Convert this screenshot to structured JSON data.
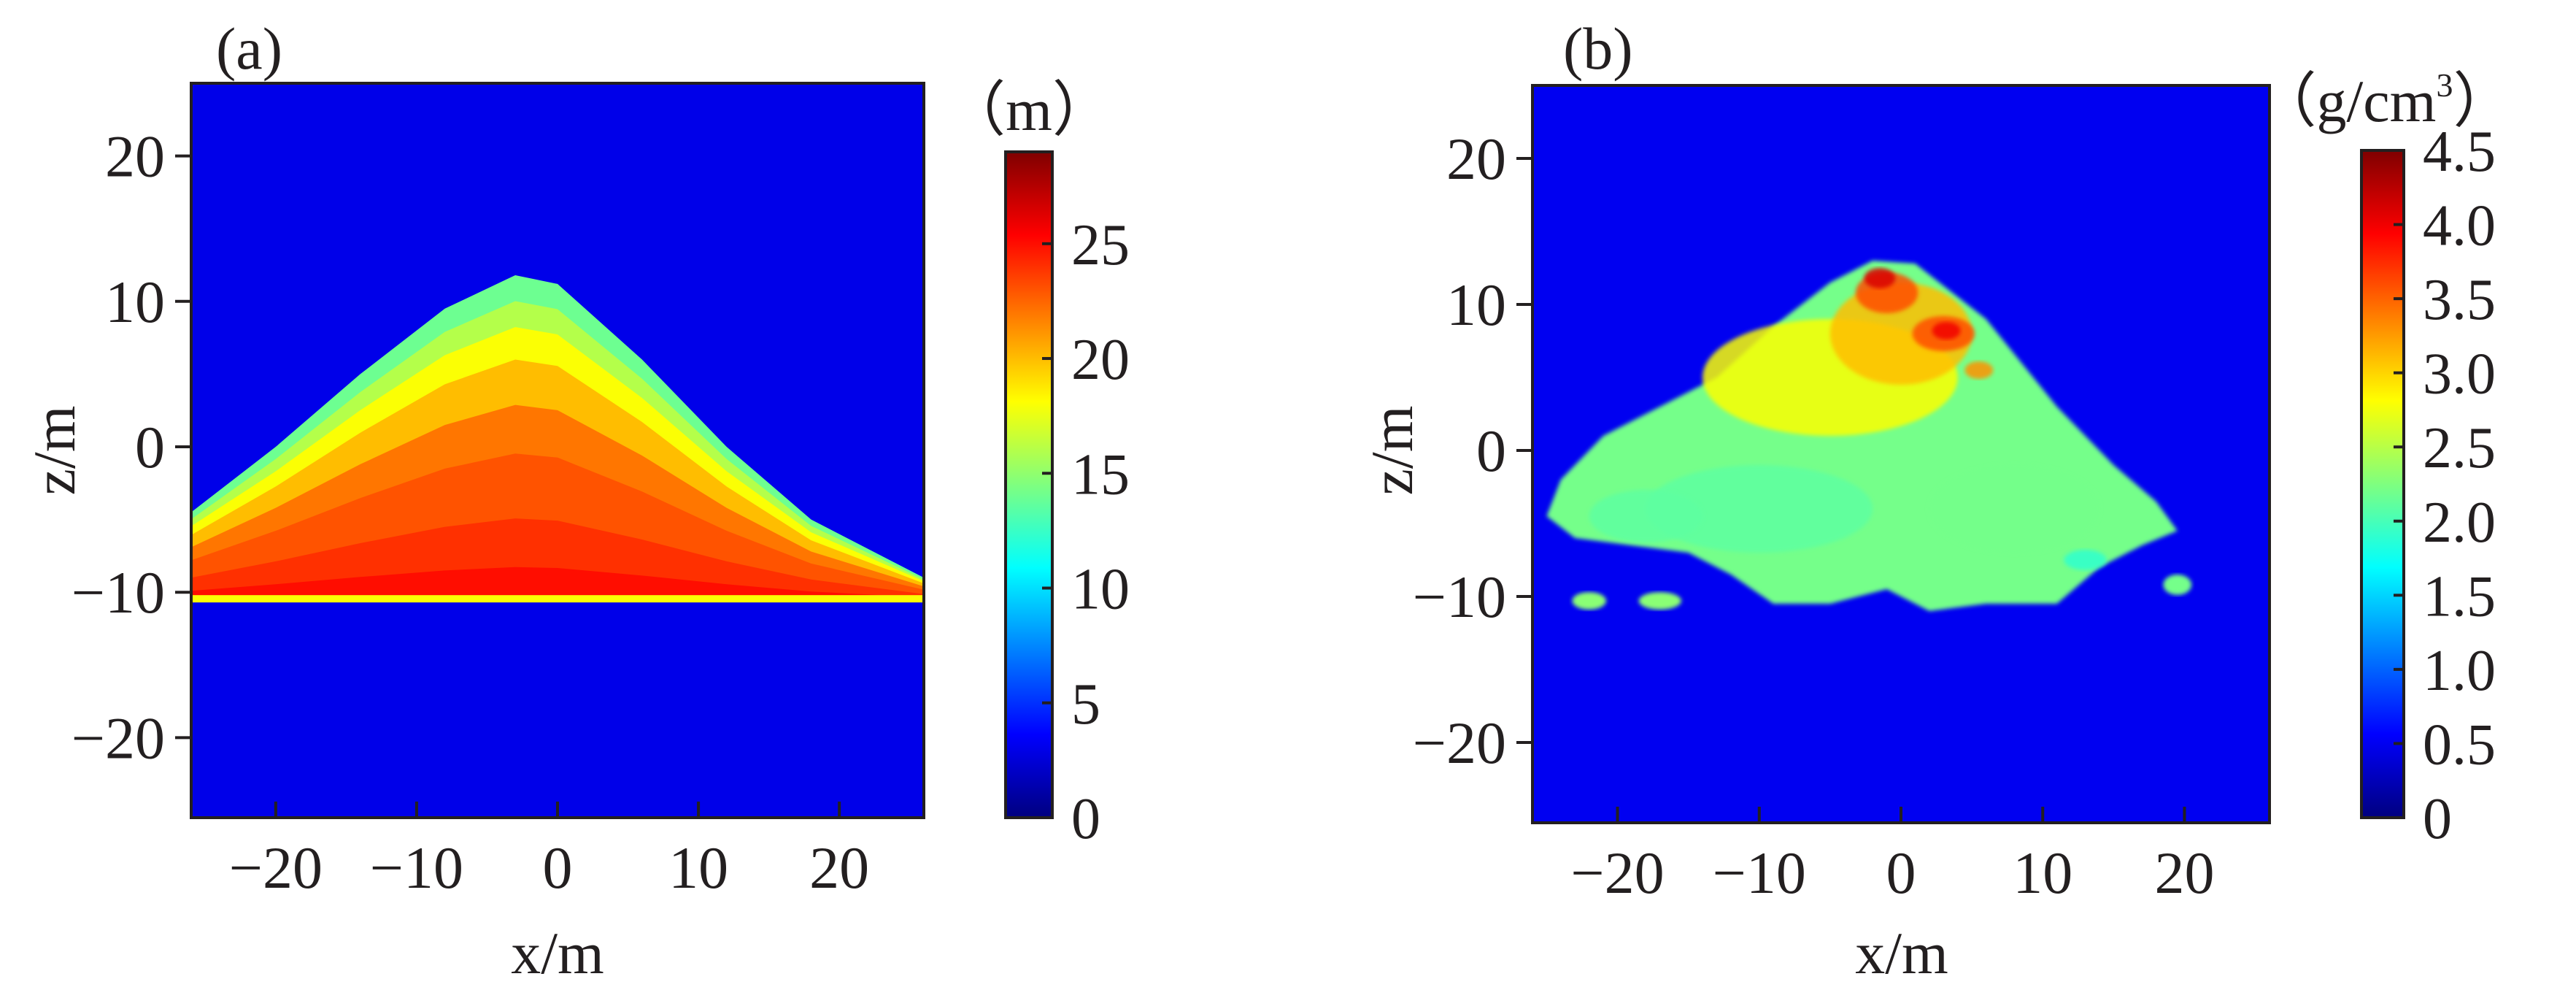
{
  "colors": {
    "background_level": "#1010ff",
    "axis": "#231f20",
    "colormap": [
      "#00007f",
      "#0000ff",
      "#007fff",
      "#00ffff",
      "#7fff7f",
      "#ffff00",
      "#ff7f00",
      "#ff0000",
      "#7f0000"
    ]
  },
  "chart_data": [
    {
      "panel": "(a)",
      "type": "heatmap",
      "description_of_field": "thickness field in meters; mound shaped region above z = -10",
      "xlabel": "x/m",
      "ylabel": "z/m",
      "xlim": [
        -26,
        26
      ],
      "ylim": [
        -25.5,
        25
      ],
      "xticks": [
        -20,
        -10,
        0,
        10,
        20
      ],
      "xtick_labels": [
        "−20",
        "−10",
        "0",
        "10",
        "20"
      ],
      "yticks": [
        20,
        10,
        0,
        -10,
        -20
      ],
      "ytick_labels": [
        "20",
        "10",
        "0",
        "−10",
        "−20"
      ],
      "colorbar": {
        "unit": "（m）",
        "range": [
          0,
          29
        ],
        "ticks": [
          0,
          5,
          10,
          15,
          20,
          25
        ],
        "tick_labels": [
          "0",
          "5",
          "10",
          "15",
          "20",
          "25"
        ]
      },
      "background_value": 3,
      "base_z": -10.5,
      "profile": [
        {
          "x": -26,
          "top_z": -4.5
        },
        {
          "x": -20,
          "top_z": 0
        },
        {
          "x": -14,
          "top_z": 5
        },
        {
          "x": -8,
          "top_z": 9.5
        },
        {
          "x": -3,
          "top_z": 11.8
        },
        {
          "x": 0,
          "top_z": 11.2
        },
        {
          "x": 6,
          "top_z": 6
        },
        {
          "x": 12,
          "top_z": 0
        },
        {
          "x": 18,
          "top_z": -5
        },
        {
          "x": 26,
          "top_z": -9
        }
      ],
      "value_bands": [
        {
          "offset": 0.0,
          "value": 14
        },
        {
          "offset": 0.08,
          "value": 16
        },
        {
          "offset": 0.16,
          "value": 18
        },
        {
          "offset": 0.26,
          "value": 20
        },
        {
          "offset": 0.4,
          "value": 22
        },
        {
          "offset": 0.55,
          "value": 23
        },
        {
          "offset": 0.75,
          "value": 24
        },
        {
          "offset": 0.9,
          "value": 25
        }
      ]
    },
    {
      "panel": "(b)",
      "type": "heatmap",
      "description_of_field": "density field in g/cm^3",
      "xlabel": "x/m",
      "ylabel": "z/m",
      "xlim": [
        -26,
        26
      ],
      "ylim": [
        -25.5,
        25
      ],
      "xticks": [
        -20,
        -10,
        0,
        10,
        20
      ],
      "xtick_labels": [
        "−20",
        "−10",
        "0",
        "10",
        "20"
      ],
      "yticks": [
        20,
        10,
        0,
        -10,
        -20
      ],
      "ytick_labels": [
        "20",
        "10",
        "0",
        "−10",
        "−20"
      ],
      "colorbar": {
        "unit_prefix": "（g/cm",
        "unit_sup": "3",
        "unit_suffix": "）",
        "range": [
          0,
          4.5
        ],
        "ticks": [
          0,
          0.5,
          1.0,
          1.5,
          2.0,
          2.5,
          3.0,
          3.5,
          4.0,
          4.5
        ],
        "tick_labels": [
          "0",
          "0.5",
          "1.0",
          "1.5",
          "2.0",
          "2.5",
          "3.0",
          "3.5",
          "4.0",
          "4.5"
        ]
      },
      "background_value": 0.5,
      "outline": [
        [
          -25,
          -4.5
        ],
        [
          -24,
          -2
        ],
        [
          -21,
          1
        ],
        [
          -17,
          3
        ],
        [
          -13,
          5
        ],
        [
          -9,
          8.5
        ],
        [
          -5,
          11.5
        ],
        [
          -2,
          13
        ],
        [
          1,
          12.8
        ],
        [
          6,
          9
        ],
        [
          11,
          3
        ],
        [
          15,
          -1
        ],
        [
          18,
          -3.5
        ],
        [
          19.5,
          -5.5
        ],
        [
          17,
          -6.5
        ],
        [
          14,
          -8
        ],
        [
          11,
          -10.5
        ],
        [
          6,
          -10.5
        ],
        [
          2,
          -11
        ],
        [
          -1,
          -9.5
        ],
        [
          -5,
          -10.5
        ],
        [
          -9,
          -10.5
        ],
        [
          -12,
          -8.5
        ],
        [
          -15,
          -7
        ],
        [
          -19,
          -6.5
        ],
        [
          -23,
          -6
        ]
      ],
      "blobs": [
        {
          "x": -22,
          "z": -10.3,
          "rx": 1.2,
          "rz": 0.6,
          "value": 2.3
        },
        {
          "x": -17,
          "z": -10.3,
          "rx": 1.5,
          "rz": 0.6,
          "value": 2.3
        },
        {
          "x": 19.5,
          "z": -9.2,
          "rx": 1.0,
          "rz": 0.7,
          "value": 2.2
        }
      ],
      "patches": [
        {
          "x": -5,
          "z": 5,
          "rx": 9,
          "rz": 4,
          "value": 2.8
        },
        {
          "x": 0,
          "z": 8,
          "rx": 5,
          "rz": 3.5,
          "value": 3.1
        },
        {
          "x": -1,
          "z": 10.8,
          "rx": 2.2,
          "rz": 1.4,
          "value": 3.6
        },
        {
          "x": -1.5,
          "z": 11.8,
          "rx": 1.1,
          "rz": 0.7,
          "value": 4.1
        },
        {
          "x": 3,
          "z": 8,
          "rx": 2.2,
          "rz": 1.2,
          "value": 3.6
        },
        {
          "x": 3.2,
          "z": 8.2,
          "rx": 1.0,
          "rz": 0.6,
          "value": 4.0
        },
        {
          "x": 5.5,
          "z": 5.5,
          "rx": 1.0,
          "rz": 0.6,
          "value": 3.3
        },
        {
          "x": -10,
          "z": -4,
          "rx": 8,
          "rz": 3,
          "value": 2.1
        },
        {
          "x": 8,
          "z": -4,
          "rx": 6,
          "rz": 3,
          "value": 2.2
        },
        {
          "x": -18,
          "z": -4.5,
          "rx": 4,
          "rz": 1.8,
          "value": 2.1
        },
        {
          "x": 13,
          "z": -7.5,
          "rx": 1.5,
          "rz": 0.7,
          "value": 1.9
        }
      ]
    }
  ]
}
